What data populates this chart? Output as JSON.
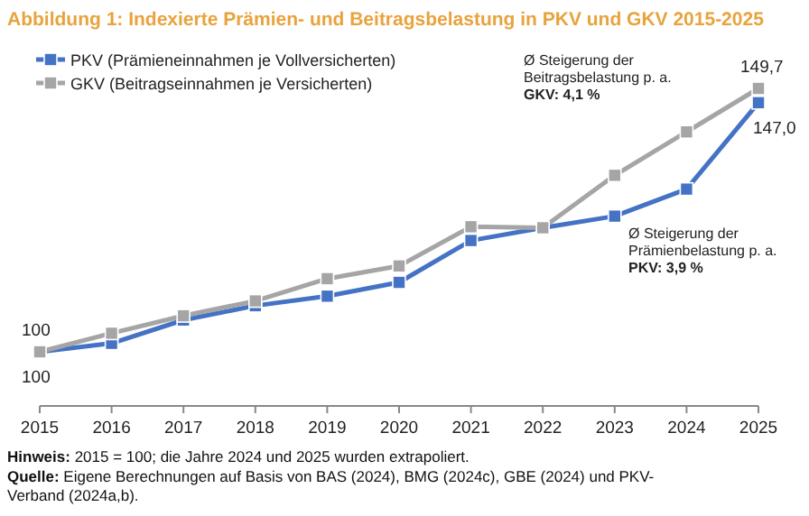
{
  "chart_data": {
    "type": "line",
    "title": "Abbildung 1: Indexierte Prämien- und Beitragsbelastung in PKV und GKV 2015-2025",
    "categories": [
      "2015",
      "2016",
      "2017",
      "2018",
      "2019",
      "2020",
      "2021",
      "2022",
      "2023",
      "2024",
      "2025"
    ],
    "series": [
      {
        "name": "PKV (Prämieneinnahmen je Vollversicherten)",
        "color": "#4472c4",
        "values": [
          100,
          101.6,
          106.0,
          108.7,
          110.5,
          113.1,
          121.0,
          123.4,
          125.6,
          130.7,
          147.0
        ],
        "value_labels": [
          "100",
          null,
          null,
          null,
          null,
          null,
          null,
          null,
          null,
          null,
          "147,0"
        ]
      },
      {
        "name": "GKV (Beitragseinnahmen je Versicherten)",
        "color": "#a5a5a5",
        "values": [
          100,
          103.5,
          106.8,
          109.6,
          113.8,
          116.2,
          123.6,
          123.4,
          133.3,
          141.5,
          149.7
        ],
        "value_labels": [
          "100",
          null,
          null,
          null,
          null,
          null,
          null,
          null,
          null,
          null,
          "149,7"
        ]
      }
    ],
    "marker": "square",
    "line_style": "solid",
    "legend": "top left",
    "grid": false,
    "annotations": [
      "Ø Steigerung der\nBeitragsbelastung p. a.\nGKV: 4,1 %",
      "Ø Steigerung der\nPrämienbelastung p. a.\nPKV: 3,9 %",
      "Hinweis: 2015 = 100; die Jahre 2024 und 2025 wurden extrapoliert.",
      "Quelle: Eigene Berechnungen auf Basis von BAS (2024), BMG (2024c), GBE (2024) und PKV-\nVerband (2024a,b)."
    ]
  }
}
